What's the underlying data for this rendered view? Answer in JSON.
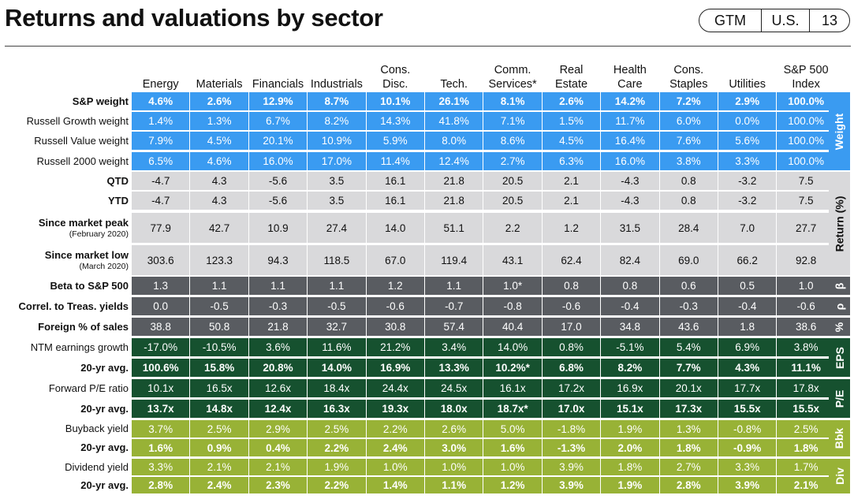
{
  "title": "Returns and valuations by sector",
  "badge": {
    "guide": "GTM",
    "region": "U.S.",
    "page": "13"
  },
  "chart_data": {
    "type": "table",
    "columns": [
      "Energy",
      "Materials",
      "Financials",
      "Industrials",
      "Cons.\nDisc.",
      "Tech.",
      "Comm.\nServices*",
      "Real\nEstate",
      "Health\nCare",
      "Cons.\nStaples",
      "Utilities",
      "S&P 500\nIndex"
    ],
    "rows": [
      {
        "label": "S&P weight",
        "bold": true,
        "group": "weight",
        "values": [
          "4.6%",
          "2.6%",
          "12.9%",
          "8.7%",
          "10.1%",
          "26.1%",
          "8.1%",
          "2.6%",
          "14.2%",
          "7.2%",
          "2.9%",
          "100.0%"
        ]
      },
      {
        "label": "Russell Growth weight",
        "group": "weight",
        "values": [
          "1.4%",
          "1.3%",
          "6.7%",
          "8.2%",
          "14.3%",
          "41.8%",
          "7.1%",
          "1.5%",
          "11.7%",
          "6.0%",
          "0.0%",
          "100.0%"
        ]
      },
      {
        "label": "Russell Value weight",
        "group": "weight",
        "values": [
          "7.9%",
          "4.5%",
          "20.1%",
          "10.9%",
          "5.9%",
          "8.0%",
          "8.6%",
          "4.5%",
          "16.4%",
          "7.6%",
          "5.6%",
          "100.0%"
        ]
      },
      {
        "label": "Russell 2000 weight",
        "group": "weight",
        "values": [
          "6.5%",
          "4.6%",
          "16.0%",
          "17.0%",
          "11.4%",
          "12.4%",
          "2.7%",
          "6.3%",
          "16.0%",
          "3.8%",
          "3.3%",
          "100.0%"
        ]
      },
      {
        "label": "QTD",
        "bold": true,
        "group": "return",
        "values": [
          "-4.7",
          "4.3",
          "-5.6",
          "3.5",
          "16.1",
          "21.8",
          "20.5",
          "2.1",
          "-4.3",
          "0.8",
          "-3.2",
          "7.5"
        ]
      },
      {
        "label": "YTD",
        "bold": true,
        "group": "return",
        "values": [
          "-4.7",
          "4.3",
          "-5.6",
          "3.5",
          "16.1",
          "21.8",
          "20.5",
          "2.1",
          "-4.3",
          "0.8",
          "-3.2",
          "7.5"
        ]
      },
      {
        "label": "Since market peak",
        "sublabel": "(February 2020)",
        "bold": true,
        "group": "return",
        "values": [
          "77.9",
          "42.7",
          "10.9",
          "27.4",
          "14.0",
          "51.1",
          "2.2",
          "1.2",
          "31.5",
          "28.4",
          "7.0",
          "27.7"
        ]
      },
      {
        "label": "Since market low",
        "sublabel": "(March 2020)",
        "bold": true,
        "group": "return",
        "values": [
          "303.6",
          "123.3",
          "94.3",
          "118.5",
          "67.0",
          "119.4",
          "43.1",
          "62.4",
          "82.4",
          "69.0",
          "66.2",
          "92.8"
        ]
      },
      {
        "label": "Beta to S&P 500",
        "bold": true,
        "group": "beta",
        "values": [
          "1.3",
          "1.1",
          "1.1",
          "1.1",
          "1.2",
          "1.1",
          "1.0*",
          "0.8",
          "0.8",
          "0.6",
          "0.5",
          "1.0"
        ]
      },
      {
        "label": "Correl. to Treas. yields",
        "bold": true,
        "group": "rho",
        "values": [
          "0.0",
          "-0.5",
          "-0.3",
          "-0.5",
          "-0.6",
          "-0.7",
          "-0.8",
          "-0.6",
          "-0.4",
          "-0.3",
          "-0.4",
          "-0.6"
        ]
      },
      {
        "label": "Foreign % of sales",
        "bold": true,
        "group": "pct",
        "values": [
          "38.8",
          "50.8",
          "21.8",
          "32.7",
          "30.8",
          "57.4",
          "40.4",
          "17.0",
          "34.8",
          "43.6",
          "1.8",
          "38.6"
        ]
      },
      {
        "label": "NTM earnings growth",
        "group": "eps",
        "values": [
          "-17.0%",
          "-10.5%",
          "3.6%",
          "11.6%",
          "21.2%",
          "3.4%",
          "14.0%",
          "0.8%",
          "-5.1%",
          "5.4%",
          "6.9%",
          "3.8%"
        ]
      },
      {
        "label": "20-yr avg.",
        "bold": true,
        "group": "eps",
        "values": [
          "100.6%",
          "15.8%",
          "20.8%",
          "14.0%",
          "16.9%",
          "13.3%",
          "10.2%*",
          "6.8%",
          "8.2%",
          "7.7%",
          "4.3%",
          "11.1%"
        ]
      },
      {
        "label": "Forward P/E ratio",
        "group": "pe",
        "values": [
          "10.1x",
          "16.5x",
          "12.6x",
          "18.4x",
          "24.4x",
          "24.5x",
          "16.1x",
          "17.2x",
          "16.9x",
          "20.1x",
          "17.7x",
          "17.8x"
        ]
      },
      {
        "label": "20-yr avg.",
        "bold": true,
        "group": "pe",
        "values": [
          "13.7x",
          "14.8x",
          "12.4x",
          "16.3x",
          "19.3x",
          "18.0x",
          "18.7x*",
          "17.0x",
          "15.1x",
          "17.3x",
          "15.5x",
          "15.5x"
        ]
      },
      {
        "label": "Buyback yield",
        "group": "bbk",
        "values": [
          "3.7%",
          "2.5%",
          "2.9%",
          "2.5%",
          "2.2%",
          "2.6%",
          "5.0%",
          "-1.8%",
          "1.9%",
          "1.3%",
          "-0.8%",
          "2.5%"
        ]
      },
      {
        "label": "20-yr avg.",
        "bold": true,
        "group": "bbk",
        "values": [
          "1.6%",
          "0.9%",
          "0.4%",
          "2.2%",
          "2.4%",
          "3.0%",
          "1.6%",
          "-1.3%",
          "2.0%",
          "1.8%",
          "-0.9%",
          "1.8%"
        ]
      },
      {
        "label": "Dividend yield",
        "group": "div",
        "values": [
          "3.3%",
          "2.1%",
          "2.1%",
          "1.9%",
          "1.0%",
          "1.0%",
          "1.0%",
          "3.9%",
          "1.8%",
          "2.7%",
          "3.3%",
          "1.7%"
        ]
      },
      {
        "label": "20-yr avg.",
        "bold": true,
        "group": "div",
        "values": [
          "2.8%",
          "2.4%",
          "2.3%",
          "2.2%",
          "1.4%",
          "1.1%",
          "1.2%",
          "3.9%",
          "1.9%",
          "2.8%",
          "3.9%",
          "2.1%"
        ]
      }
    ],
    "groups": [
      {
        "id": "weight",
        "label": "Weight"
      },
      {
        "id": "return",
        "label": "Return (%)"
      },
      {
        "id": "beta",
        "label": "β"
      },
      {
        "id": "rho",
        "label": "ρ"
      },
      {
        "id": "pct",
        "label": "%"
      },
      {
        "id": "eps",
        "label": "EPS"
      },
      {
        "id": "pe",
        "label": "P/E"
      },
      {
        "id": "bbk",
        "label": "Bbk"
      },
      {
        "id": "div",
        "label": "Div"
      }
    ],
    "colors": {
      "weight": "#3a9bf1",
      "return": "#d9d9db",
      "beta": "#595c61",
      "rho": "#595c61",
      "pct": "#595c61",
      "eps": "#16512f",
      "pe": "#16512f",
      "bbk": "#98b236",
      "div": "#98b236"
    },
    "text_colors": {
      "light": "#ffffff",
      "dark": "#111111"
    }
  }
}
